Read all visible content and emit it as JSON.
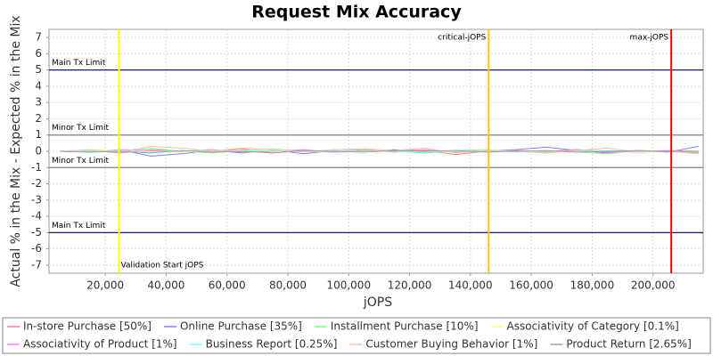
{
  "chart_data": {
    "type": "line",
    "title": "Request Mix Accuracy",
    "x_label": "jOPS",
    "y_label": "Actual % in the Mix - Expected % in the Mix",
    "x": [
      5000,
      15000,
      25000,
      35000,
      45000,
      55000,
      65000,
      75000,
      85000,
      95000,
      105000,
      115000,
      125000,
      135000,
      145000,
      155000,
      165000,
      175000,
      185000,
      195000,
      205000,
      215000
    ],
    "series": [
      {
        "name": "In-store Purchase [50%]",
        "color": "#ff8080",
        "values": [
          0,
          0.05,
          -0.1,
          0.1,
          0,
          -0.05,
          0.15,
          -0.1,
          0.05,
          0,
          0.1,
          -0.05,
          0.05,
          -0.2,
          0,
          0.05,
          -0.05,
          0.1,
          0,
          -0.05,
          0,
          -0.1
        ]
      },
      {
        "name": "Online Purchase [35%]",
        "color": "#8080ff",
        "values": [
          0,
          -0.05,
          0.1,
          -0.3,
          -0.15,
          0.05,
          -0.1,
          0.1,
          -0.15,
          0.05,
          -0.05,
          0.1,
          -0.1,
          0.05,
          0,
          0.1,
          0.25,
          0.05,
          -0.1,
          0.05,
          -0.05,
          0.3
        ]
      },
      {
        "name": "Installment Purchase [10%]",
        "color": "#80ff80",
        "values": [
          0,
          0.05,
          -0.05,
          0.2,
          0,
          -0.1,
          0.05,
          0.15,
          0,
          -0.05,
          0.05,
          0,
          -0.1,
          0.05,
          0.1,
          -0.05,
          0,
          -0.05,
          -0.15,
          0.05,
          0,
          -0.05
        ]
      },
      {
        "name": "Associativity of Category [0.1%]",
        "color": "#ffff80",
        "values": [
          0,
          0.1,
          0.05,
          0,
          -0.05,
          0.05,
          0,
          0.1,
          0,
          0,
          -0.05,
          0.05,
          0,
          0,
          0.05,
          0,
          -0.1,
          0,
          0.05,
          0,
          0,
          0
        ]
      },
      {
        "name": "Associativity of Product [1%]",
        "color": "#ff80ff",
        "values": [
          0,
          -0.05,
          0.1,
          0.05,
          0,
          0.1,
          -0.05,
          0,
          0.1,
          -0.05,
          0,
          0.05,
          0.1,
          -0.05,
          0,
          0.05,
          0,
          0.1,
          -0.05,
          0,
          0.05,
          0
        ]
      },
      {
        "name": "Business Report [0.25%]",
        "color": "#80ffff",
        "values": [
          0,
          0,
          0.05,
          -0.05,
          0.05,
          0,
          0,
          0.05,
          0,
          0.05,
          0,
          0,
          -0.05,
          0,
          0.05,
          0,
          0,
          0,
          0.05,
          0,
          0,
          0
        ]
      },
      {
        "name": "Customer Buying Behavior [1%]",
        "color": "#ffc0a8",
        "values": [
          0,
          0.1,
          -0.05,
          0.3,
          0.2,
          0,
          0.2,
          0.1,
          -0.05,
          0.1,
          0.15,
          0.05,
          0.2,
          -0.1,
          0.05,
          0,
          -0.1,
          0.05,
          0.2,
          -0.05,
          0,
          -0.15
        ]
      },
      {
        "name": "Product Return [2.65%]",
        "color": "#a0a0a0",
        "values": [
          0,
          -0.05,
          0,
          -0.1,
          0.05,
          -0.05,
          0,
          -0.1,
          0.05,
          0,
          -0.05,
          0.05,
          0,
          0.05,
          -0.05,
          0,
          0.05,
          -0.05,
          0,
          0.05,
          0,
          0
        ]
      }
    ],
    "xlim": [
      1500,
      216500
    ],
    "ylim": [
      -7.5,
      7.5
    ],
    "xticks": [
      {
        "value": 20000,
        "label": "20,000"
      },
      {
        "value": 40000,
        "label": "40,000"
      },
      {
        "value": 60000,
        "label": "60,000"
      },
      {
        "value": 80000,
        "label": "80,000"
      },
      {
        "value": 100000,
        "label": "100,000"
      },
      {
        "value": 120000,
        "label": "120,000"
      },
      {
        "value": 140000,
        "label": "140,000"
      },
      {
        "value": 160000,
        "label": "160,000"
      },
      {
        "value": 180000,
        "label": "180,000"
      },
      {
        "value": 200000,
        "label": "200,000"
      }
    ],
    "yticks": [
      -7,
      -6,
      -5,
      -4,
      -3,
      -2,
      -1,
      0,
      1,
      2,
      3,
      4,
      5,
      6,
      7
    ],
    "grid": true,
    "legend": "bottom",
    "hlines": [
      {
        "value": 5,
        "label": "Main Tx Limit",
        "color": "#000066"
      },
      {
        "value": 1,
        "label": "Minor Tx Limit",
        "color": "#808080"
      },
      {
        "value": -1,
        "label": "Minor Tx Limit",
        "color": "#808080"
      },
      {
        "value": -5,
        "label": "Main Tx Limit",
        "color": "#000066"
      }
    ],
    "vlines": [
      {
        "value": 24500,
        "label": "Validation Start jOPS",
        "color": "#ffff00",
        "label_at": "bottom"
      },
      {
        "value": 146000,
        "label": "critical-jOPS",
        "color": "#ffc800",
        "label_at": "top"
      },
      {
        "value": 206000,
        "label": "max-jOPS",
        "color": "#ff0000",
        "label_at": "top"
      }
    ]
  }
}
